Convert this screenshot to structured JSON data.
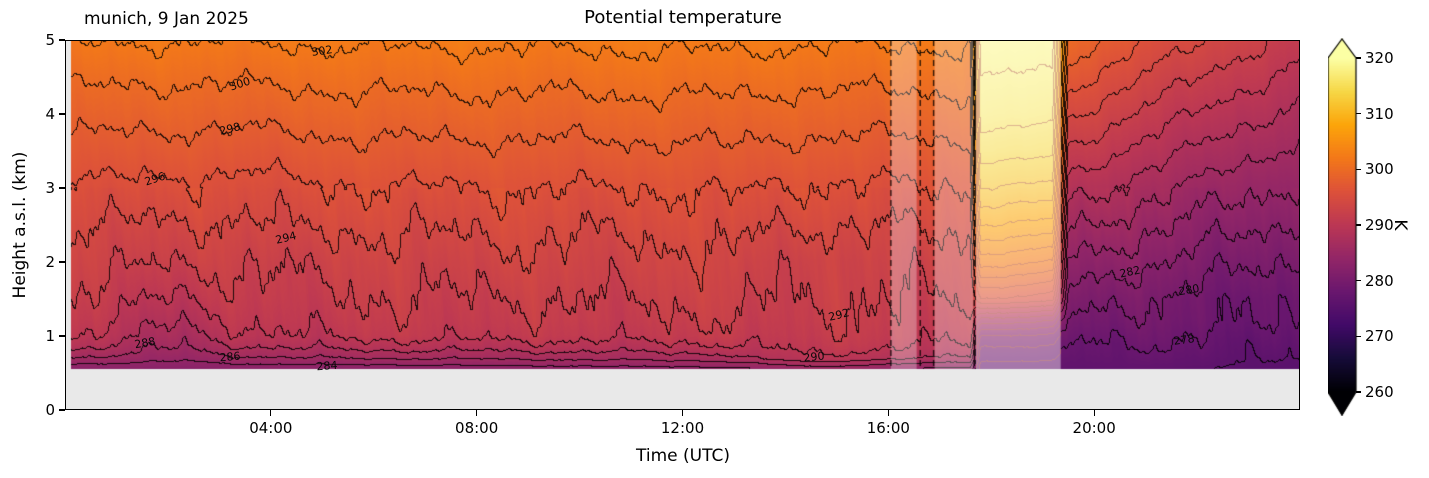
{
  "figure": {
    "title": "Potential temperature",
    "station_label": "munich, 9 Jan 2025",
    "xlabel": "Time (UTC)",
    "ylabel": "Height a.s.l. (km)",
    "colorbar_label": "K"
  },
  "chart_data": {
    "type": "heatmap",
    "variable": "potential temperature",
    "unit": "K",
    "x_unit": "hours UTC",
    "x_range": [
      0,
      24
    ],
    "y_range": [
      0,
      5
    ],
    "y_min_data": 0.55,
    "x_ticks": [
      {
        "value": 4,
        "label": "04:00"
      },
      {
        "value": 8,
        "label": "08:00"
      },
      {
        "value": 12,
        "label": "12:00"
      },
      {
        "value": 16,
        "label": "16:00"
      },
      {
        "value": 20,
        "label": "20:00"
      }
    ],
    "y_ticks": [
      {
        "value": 0,
        "label": "0"
      },
      {
        "value": 1,
        "label": "1"
      },
      {
        "value": 2,
        "label": "2"
      },
      {
        "value": 3,
        "label": "3"
      },
      {
        "value": 4,
        "label": "4"
      },
      {
        "value": 5,
        "label": "5"
      }
    ],
    "contour_interval": 2,
    "contour_levels_labeled": [
      278,
      280,
      282,
      284,
      286,
      288,
      290,
      292,
      294,
      296,
      298,
      300,
      302
    ],
    "contour_labels": [
      {
        "level": "302",
        "t": 5.0,
        "z": 4.85,
        "rot": -8
      },
      {
        "level": "300",
        "t": 3.4,
        "z": 4.4,
        "rot": -18
      },
      {
        "level": "298",
        "t": 3.2,
        "z": 3.8,
        "rot": -14
      },
      {
        "level": "296",
        "t": 1.75,
        "z": 3.12,
        "rot": -18
      },
      {
        "level": "294",
        "t": 4.3,
        "z": 2.32,
        "rot": -14
      },
      {
        "level": "292",
        "t": 15.05,
        "z": 1.28,
        "rot": -14
      },
      {
        "level": "290",
        "t": 14.55,
        "z": 0.72,
        "rot": -6
      },
      {
        "level": "288",
        "t": 1.55,
        "z": 0.9,
        "rot": -10
      },
      {
        "level": "286",
        "t": 3.2,
        "z": 0.72,
        "rot": -5
      },
      {
        "level": "284",
        "t": 5.1,
        "z": 0.6,
        "rot": -4
      },
      {
        "level": "282",
        "t": 20.7,
        "z": 1.86,
        "rot": -12
      },
      {
        "level": "280",
        "t": 21.85,
        "z": 1.62,
        "rot": -10
      },
      {
        "level": "278",
        "t": 21.75,
        "z": 0.95,
        "rot": -8
      }
    ],
    "colorbar": {
      "min": 260,
      "max": 320,
      "ticks": [
        260,
        270,
        280,
        290,
        300,
        310,
        320
      ],
      "colormap": "inferno",
      "extend": "both",
      "stops": [
        [
          0.0,
          "#000004"
        ],
        [
          0.1,
          "#160b39"
        ],
        [
          0.2,
          "#420a68"
        ],
        [
          0.3,
          "#6a176e"
        ],
        [
          0.4,
          "#932667"
        ],
        [
          0.5,
          "#bc3754"
        ],
        [
          0.6,
          "#dd513a"
        ],
        [
          0.7,
          "#f37819"
        ],
        [
          0.8,
          "#fca50a"
        ],
        [
          0.9,
          "#f6d746"
        ],
        [
          1.0,
          "#fcffa4"
        ]
      ]
    },
    "below_ground_fill": "#e9e9e9",
    "no_data_left_edge_hours": 0.12,
    "masked_bands": [
      {
        "start": 16.05,
        "end": 16.55,
        "alpha": 0.3
      },
      {
        "start": 16.9,
        "end": 17.65,
        "alpha": 0.3
      },
      {
        "start": 17.7,
        "end": 19.35,
        "alpha": 0.42
      }
    ],
    "anomaly_band": [
      17.7,
      19.35
    ],
    "dashed_edges": [
      16.05,
      16.62,
      16.88,
      17.67
    ],
    "grid": {
      "times": [
        0,
        1.5,
        2.3,
        3.1,
        3.7,
        4.5,
        6,
        9,
        11,
        12.5,
        13,
        13.6,
        14.6,
        15.3,
        16,
        16.6,
        17.1,
        17.6,
        17.8,
        19.2,
        19.5,
        21,
        22.5,
        24
      ],
      "heights": [
        0.55,
        0.7,
        0.85,
        1.0,
        1.2,
        1.5,
        2.0,
        2.5,
        3.0,
        3.5,
        4.0,
        4.5,
        5.0
      ],
      "theta": [
        [
          282.5,
          286.0,
          288.8,
          290.4,
          291.2,
          291.9,
          292.9,
          294.1,
          295.7,
          297.3,
          298.9,
          300.5,
          302.3
        ],
        [
          282.5,
          285.2,
          286.8,
          288.0,
          289.0,
          290.4,
          292.4,
          293.9,
          295.6,
          297.2,
          298.8,
          300.4,
          302.2
        ],
        [
          282.3,
          284.6,
          286.0,
          287.0,
          288.2,
          289.8,
          292.2,
          293.8,
          295.5,
          297.1,
          298.7,
          300.3,
          302.1
        ],
        [
          282.5,
          285.4,
          287.4,
          288.8,
          289.8,
          291.0,
          292.4,
          293.7,
          295.4,
          297.0,
          298.7,
          300.3,
          302.1
        ],
        [
          282.6,
          285.8,
          288.0,
          289.6,
          290.4,
          291.2,
          292.1,
          293.7,
          295.3,
          297.0,
          298.8,
          300.4,
          302.2
        ],
        [
          282.7,
          286.0,
          288.4,
          290.0,
          290.8,
          291.6,
          292.6,
          294.3,
          295.7,
          297.2,
          298.9,
          300.5,
          302.3
        ],
        [
          282.7,
          286.2,
          288.8,
          290.6,
          291.3,
          291.9,
          292.9,
          294.3,
          295.9,
          297.5,
          299.1,
          300.7,
          302.4
        ],
        [
          283.0,
          286.5,
          289.0,
          290.7,
          291.4,
          292.0,
          293.3,
          294.6,
          296.0,
          297.5,
          299.1,
          300.7,
          302.4
        ],
        [
          283.2,
          286.8,
          289.2,
          290.8,
          291.5,
          292.1,
          293.2,
          294.5,
          296.0,
          297.6,
          299.2,
          300.8,
          302.5
        ],
        [
          283.4,
          287.0,
          289.4,
          291.0,
          291.7,
          292.4,
          293.5,
          294.7,
          296.1,
          297.6,
          299.2,
          300.8,
          302.5
        ],
        [
          283.5,
          287.4,
          289.8,
          291.3,
          292.0,
          292.8,
          293.9,
          295.1,
          296.5,
          297.9,
          299.3,
          300.9,
          302.5
        ],
        [
          284.0,
          288.6,
          290.2,
          291.0,
          291.5,
          292.0,
          292.8,
          294.2,
          295.9,
          297.5,
          299.1,
          300.7,
          302.4
        ],
        [
          285.0,
          289.8,
          290.8,
          291.4,
          291.8,
          292.1,
          292.4,
          294.0,
          295.8,
          297.4,
          299.0,
          300.6,
          302.3
        ],
        [
          284.6,
          289.2,
          290.5,
          291.2,
          291.6,
          292.0,
          292.6,
          294.1,
          295.8,
          297.4,
          299.0,
          300.6,
          302.3
        ],
        [
          284.0,
          288.6,
          290.2,
          291.0,
          291.5,
          292.0,
          292.9,
          294.2,
          295.8,
          297.4,
          299.0,
          300.6,
          302.3
        ],
        [
          283.8,
          288.2,
          290.0,
          290.9,
          291.4,
          292.0,
          293.0,
          294.3,
          295.9,
          297.4,
          299.0,
          300.6,
          302.3
        ],
        [
          283.6,
          288.0,
          289.8,
          290.8,
          291.4,
          292.1,
          293.1,
          294.4,
          295.9,
          297.5,
          299.1,
          300.7,
          302.4
        ],
        [
          283.4,
          287.6,
          289.6,
          290.6,
          291.3,
          292.0,
          293.0,
          294.4,
          296.0,
          297.5,
          299.1,
          300.7,
          302.4
        ],
        [
          277.0,
          278.5,
          280.0,
          282.0,
          287.0,
          296.0,
          303.0,
          308.0,
          312.0,
          315.0,
          317.0,
          318.0,
          319.0
        ],
        [
          277.0,
          278.3,
          279.8,
          281.6,
          286.0,
          295.0,
          302.0,
          307.5,
          311.5,
          314.5,
          316.5,
          317.8,
          318.8
        ],
        [
          276.5,
          277.2,
          277.9,
          278.7,
          279.8,
          281.4,
          284.0,
          286.6,
          289.2,
          291.8,
          294.4,
          297.0,
          299.6
        ],
        [
          276.6,
          277.3,
          277.9,
          278.5,
          279.3,
          280.0,
          282.3,
          284.6,
          286.9,
          289.2,
          291.5,
          293.8,
          296.1
        ],
        [
          275.9,
          276.5,
          277.1,
          277.7,
          278.5,
          278.9,
          280.8,
          282.9,
          285.0,
          287.1,
          289.2,
          291.3,
          293.4
        ],
        [
          275.4,
          275.9,
          276.4,
          277.0,
          277.8,
          278.1,
          279.8,
          281.7,
          283.6,
          285.5,
          287.4,
          289.3,
          291.2
        ]
      ]
    }
  }
}
